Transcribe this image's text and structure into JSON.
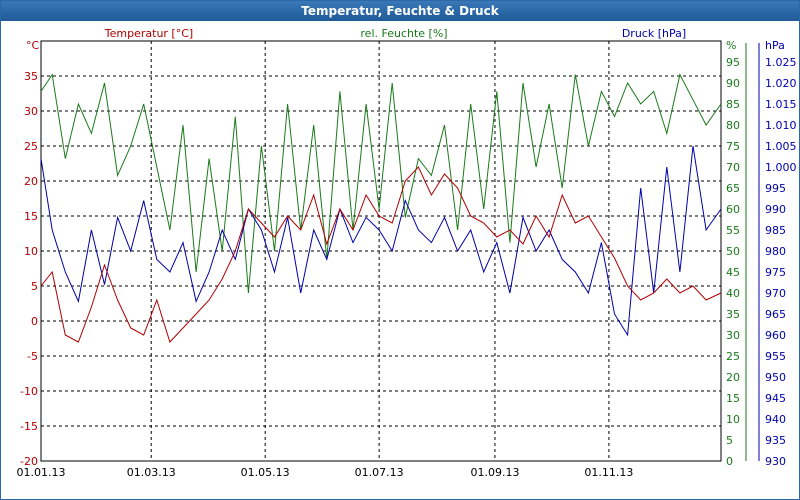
{
  "title": "Temperatur, Feuchte & Druck",
  "colors": {
    "temperature": "#b00000",
    "humidity": "#1a7a1a",
    "pressure": "#0000aa",
    "grid": "#000000",
    "title_bg": "#2b6aa8"
  },
  "chart_data": {
    "type": "line",
    "title": "Temperatur, Feuchte & Druck",
    "grid": true,
    "x_ticks": [
      "01.01.13",
      "01.03.13",
      "01.05.13",
      "01.07.13",
      "01.09.13",
      "01.11.13"
    ],
    "x_range": [
      "01.01.13",
      "31.12.13"
    ],
    "axes": {
      "temperature": {
        "title": "Temperatur [°C]",
        "unit": "°C",
        "range": [
          -20,
          40
        ],
        "ticks": [
          "35",
          "30",
          "25",
          "20",
          "15",
          "10",
          "5",
          "0",
          "-5",
          "-10",
          "-15",
          "-20"
        ]
      },
      "humidity": {
        "title": "rel. Feuchte [%]",
        "unit": "%",
        "range": [
          0,
          100
        ],
        "ticks": [
          "95",
          "90",
          "85",
          "80",
          "75",
          "70",
          "65",
          "60",
          "55",
          "50",
          "45",
          "40",
          "35",
          "30",
          "25",
          "20",
          "15",
          "10",
          "5",
          "0"
        ]
      },
      "pressure": {
        "title": "Druck [hPa]",
        "unit": "hPa",
        "range": [
          930,
          1030
        ],
        "ticks": [
          "1.025",
          "1.020",
          "1.015",
          "1.010",
          "1.005",
          "1.000",
          "995",
          "990",
          "985",
          "980",
          "975",
          "970",
          "965",
          "960",
          "955",
          "950",
          "945",
          "940",
          "935",
          "930"
        ]
      }
    },
    "series": [
      {
        "name": "Temperatur [°C]",
        "axis": "temperature",
        "x": [
          "01.01.13",
          "07.01.13",
          "14.01.13",
          "21.01.13",
          "28.01.13",
          "04.02.13",
          "11.02.13",
          "18.02.13",
          "25.02.13",
          "04.03.13",
          "11.03.13",
          "18.03.13",
          "25.03.13",
          "01.04.13",
          "08.04.13",
          "15.04.13",
          "22.04.13",
          "29.04.13",
          "06.05.13",
          "13.05.13",
          "20.05.13",
          "27.05.13",
          "03.06.13",
          "10.06.13",
          "17.06.13",
          "24.06.13",
          "01.07.13",
          "08.07.13",
          "15.07.13",
          "22.07.13",
          "29.07.13",
          "05.08.13",
          "12.08.13",
          "19.08.13",
          "26.08.13",
          "02.09.13",
          "09.09.13",
          "16.09.13",
          "23.09.13",
          "30.09.13",
          "07.10.13",
          "14.10.13",
          "21.10.13",
          "28.10.13",
          "04.11.13",
          "11.11.13",
          "18.11.13",
          "25.11.13",
          "02.12.13",
          "09.12.13",
          "16.12.13",
          "23.12.13",
          "31.12.13"
        ],
        "values": [
          5,
          7,
          -2,
          -3,
          2,
          8,
          3,
          -1,
          -2,
          3,
          -3,
          -1,
          1,
          3,
          6,
          10,
          16,
          14,
          12,
          15,
          13,
          18,
          11,
          16,
          13,
          18,
          15,
          14,
          20,
          22,
          18,
          21,
          19,
          15,
          14,
          12,
          13,
          11,
          15,
          12,
          18,
          14,
          15,
          12,
          9,
          5,
          3,
          4,
          6,
          4,
          5,
          3,
          4
        ]
      },
      {
        "name": "rel. Feuchte [%]",
        "axis": "humidity",
        "x": [
          "01.01.13",
          "07.01.13",
          "14.01.13",
          "21.01.13",
          "28.01.13",
          "04.02.13",
          "11.02.13",
          "18.02.13",
          "25.02.13",
          "04.03.13",
          "11.03.13",
          "18.03.13",
          "25.03.13",
          "01.04.13",
          "08.04.13",
          "15.04.13",
          "22.04.13",
          "29.04.13",
          "06.05.13",
          "13.05.13",
          "20.05.13",
          "27.05.13",
          "03.06.13",
          "10.06.13",
          "17.06.13",
          "24.06.13",
          "01.07.13",
          "08.07.13",
          "15.07.13",
          "22.07.13",
          "29.07.13",
          "05.08.13",
          "12.08.13",
          "19.08.13",
          "26.08.13",
          "02.09.13",
          "09.09.13",
          "16.09.13",
          "23.09.13",
          "30.09.13",
          "07.10.13",
          "14.10.13",
          "21.10.13",
          "28.10.13",
          "04.11.13",
          "11.11.13",
          "18.11.13",
          "25.11.13",
          "02.12.13",
          "09.12.13",
          "16.12.13",
          "23.12.13",
          "31.12.13"
        ],
        "values": [
          88,
          92,
          72,
          85,
          78,
          90,
          68,
          75,
          85,
          70,
          55,
          80,
          45,
          72,
          50,
          82,
          40,
          75,
          50,
          85,
          55,
          80,
          48,
          88,
          55,
          85,
          60,
          90,
          58,
          72,
          68,
          80,
          55,
          85,
          60,
          88,
          52,
          90,
          70,
          85,
          65,
          92,
          75,
          88,
          82,
          90,
          85,
          88,
          78,
          92,
          86,
          80,
          85
        ]
      },
      {
        "name": "Druck [hPa]",
        "axis": "pressure",
        "x": [
          "01.01.13",
          "07.01.13",
          "14.01.13",
          "21.01.13",
          "28.01.13",
          "04.02.13",
          "11.02.13",
          "18.02.13",
          "25.02.13",
          "04.03.13",
          "11.03.13",
          "18.03.13",
          "25.03.13",
          "01.04.13",
          "08.04.13",
          "15.04.13",
          "22.04.13",
          "29.04.13",
          "06.05.13",
          "13.05.13",
          "20.05.13",
          "27.05.13",
          "03.06.13",
          "10.06.13",
          "17.06.13",
          "24.06.13",
          "01.07.13",
          "08.07.13",
          "15.07.13",
          "22.07.13",
          "29.07.13",
          "05.08.13",
          "12.08.13",
          "19.08.13",
          "26.08.13",
          "02.09.13",
          "09.09.13",
          "16.09.13",
          "23.09.13",
          "30.09.13",
          "07.10.13",
          "14.10.13",
          "21.10.13",
          "28.10.13",
          "04.11.13",
          "11.11.13",
          "18.11.13",
          "25.11.13",
          "02.12.13",
          "09.12.13",
          "16.12.13",
          "23.12.13",
          "31.12.13"
        ],
        "values": [
          1002,
          985,
          975,
          968,
          985,
          972,
          988,
          980,
          992,
          978,
          975,
          982,
          968,
          975,
          985,
          978,
          990,
          985,
          975,
          988,
          970,
          985,
          978,
          990,
          982,
          988,
          985,
          980,
          992,
          985,
          982,
          988,
          980,
          985,
          975,
          982,
          970,
          988,
          980,
          985,
          978,
          975,
          970,
          982,
          965,
          960,
          995,
          970,
          1000,
          975,
          1005,
          985,
          990
        ]
      }
    ]
  }
}
